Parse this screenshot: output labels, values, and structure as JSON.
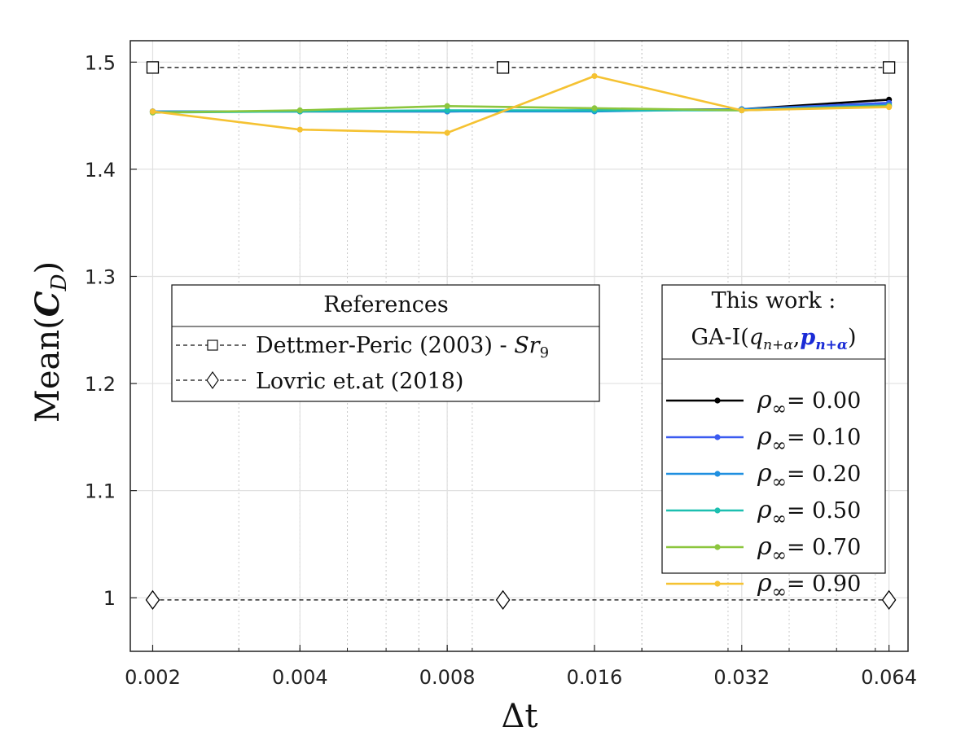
{
  "chart_data": {
    "type": "line",
    "xscale": "log2",
    "xlabel": "Δt",
    "ylabel": {
      "prefix": "Mean(",
      "var": "C",
      "sub": "D",
      "suffix": ")"
    },
    "x": [
      0.002,
      0.004,
      0.008,
      0.016,
      0.032,
      0.064
    ],
    "x_tick_labels": [
      "0.002",
      "0.004",
      "0.008",
      "0.016",
      "0.032",
      "0.064"
    ],
    "xlim": [
      0.0018,
      0.07
    ],
    "ylim": [
      0.95,
      1.52
    ],
    "y_ticks": [
      1,
      1.1,
      1.2,
      1.3,
      1.4,
      1.5
    ],
    "y_tick_labels": [
      "1",
      "1.1",
      "1.2",
      "1.3",
      "1.4",
      "1.5"
    ],
    "grid": true,
    "series": [
      {
        "name": "ρ∞= 0.00",
        "rho_value": "0.00",
        "color": "#000000",
        "values": [
          1.454,
          1.454,
          1.454,
          1.455,
          1.456,
          1.465
        ]
      },
      {
        "name": "ρ∞= 0.10",
        "rho_value": "0.10",
        "color": "#3b5bf0",
        "values": [
          1.454,
          1.454,
          1.454,
          1.455,
          1.456,
          1.462
        ]
      },
      {
        "name": "ρ∞= 0.20",
        "rho_value": "0.20",
        "color": "#1f8fe0",
        "values": [
          1.454,
          1.454,
          1.454,
          1.454,
          1.456,
          1.46
        ]
      },
      {
        "name": "ρ∞= 0.50",
        "rho_value": "0.50",
        "color": "#1cbfb0",
        "values": [
          1.453,
          1.454,
          1.455,
          1.455,
          1.455,
          1.459
        ]
      },
      {
        "name": "ρ∞= 0.70",
        "rho_value": "0.70",
        "color": "#8cc63e",
        "values": [
          1.453,
          1.455,
          1.459,
          1.457,
          1.455,
          1.459
        ]
      },
      {
        "name": "ρ∞= 0.90",
        "rho_value": "0.90",
        "color": "#f5c232",
        "values": [
          1.454,
          1.437,
          1.434,
          1.487,
          1.455,
          1.458
        ]
      }
    ],
    "references": [
      {
        "name": "Dettmer-Peric (2003) - Sr9",
        "text": "Dettmer-Peric (2003) - ",
        "math_var": "Sr",
        "math_sub": "9",
        "marker": "square",
        "value": 1.495,
        "marker_x": [
          0.002,
          0.0104,
          0.064
        ],
        "color": "#000000"
      },
      {
        "name": "Lovric et.at (2018)",
        "text": "Lovric et.at (2018)",
        "marker": "diamond",
        "value": 0.998,
        "marker_x": [
          0.002,
          0.0104,
          0.064
        ],
        "color": "#000000"
      }
    ],
    "legend_references": {
      "title": "References",
      "placement": "center-left"
    },
    "legend_series": {
      "title_line1": "This work :",
      "title_prefix": "GA-I(",
      "title_q": "q",
      "title_q_sub": "n+α",
      "title_sep": ",",
      "title_p": "p",
      "title_p_sub": "n+α",
      "title_suffix": ")",
      "title_p_color": "#1a2bd6",
      "rho_symbol": "ρ",
      "rho_sub": "∞",
      "rho_eq": "=",
      "placement": "right"
    }
  }
}
